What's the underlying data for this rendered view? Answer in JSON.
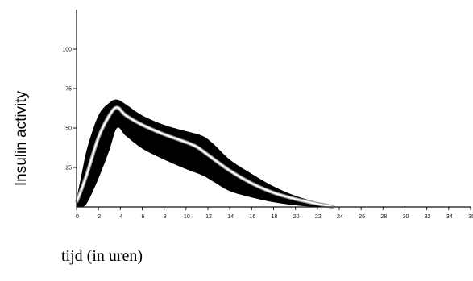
{
  "chart_data": {
    "type": "area",
    "title": "",
    "xlabel": "tijd (in uren)",
    "ylabel": "Insulin activity",
    "xlim": [
      0,
      36
    ],
    "ylim": [
      0,
      125
    ],
    "x_ticks": [
      0,
      2,
      4,
      6,
      8,
      10,
      12,
      14,
      16,
      18,
      20,
      22,
      24,
      26,
      28,
      30,
      32,
      34,
      36
    ],
    "y_ticks": [
      25,
      50,
      75,
      100
    ],
    "grid": false,
    "legend": "none",
    "band_color": "#000000",
    "line_color": "#ffffff",
    "series": [
      {
        "role": "band",
        "x": [
          0,
          0.5,
          1,
          2,
          3,
          3.7,
          4.5,
          6,
          8,
          10,
          11.5,
          12.5,
          14,
          16,
          18,
          20,
          22,
          23.8
        ],
        "upper": [
          5,
          22,
          38,
          58,
          66,
          68,
          65,
          58,
          52,
          48,
          45,
          40,
          30,
          21,
          13,
          7,
          3,
          0
        ],
        "lower": [
          0,
          0,
          3,
          18,
          36,
          50,
          45,
          37,
          30,
          24,
          20,
          16,
          10,
          6,
          3,
          1,
          0,
          0
        ]
      },
      {
        "role": "mean",
        "x": [
          0,
          0.5,
          1,
          2,
          3,
          3.7,
          4.5,
          6,
          8,
          10,
          11,
          12,
          14,
          16,
          18,
          20,
          22,
          23.5
        ],
        "y": [
          3,
          12,
          22,
          44,
          58,
          63,
          58,
          52,
          46,
          41,
          38,
          33,
          23,
          15,
          9,
          5,
          2,
          0
        ]
      }
    ]
  }
}
